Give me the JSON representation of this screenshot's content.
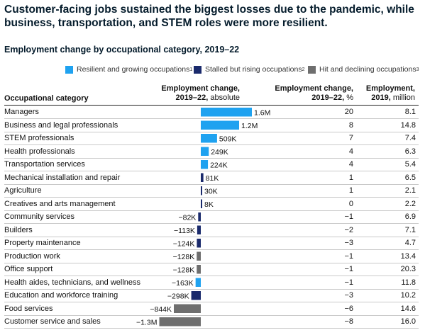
{
  "title": "Customer-facing jobs sustained the biggest losses due to the pandemic, while business, transportation, and STEM roles were more resilient.",
  "subtitle": "Employment change by occupational category, 2019–22",
  "legend": [
    {
      "label": "Resilient and growing occupations",
      "sup": "1",
      "color": "#1fa2f0"
    },
    {
      "label": "Stalled but rising occupations",
      "sup": "2",
      "color": "#1a2a6c"
    },
    {
      "label": "Hit and declining occupations",
      "sup": "3",
      "color": "#6e6e6e"
    }
  ],
  "headers": {
    "category": "Occupational category",
    "abs_line1": "Employment change,",
    "abs_line2_bold": "2019–22,",
    "abs_line2_rest": " absolute",
    "pct_line1": "Employment change,",
    "pct_line2_bold": "2019–22,",
    "pct_line2_rest": " %",
    "emp_line1": "Employment,",
    "emp_line2_bold": "2019,",
    "emp_line2_rest": " million"
  },
  "chart_data": {
    "type": "bar",
    "orientation": "horizontal",
    "title": "Employment change by occupational category, 2019–22",
    "categories": [
      "Managers",
      "Business and legal professionals",
      "STEM professionals",
      "Health professionals",
      "Transportation services",
      "Mechanical installation and repair",
      "Agriculture",
      "Creatives and arts management",
      "Community services",
      "Builders",
      "Property maintenance",
      "Production work",
      "Office support",
      "Health aides, technicians, and wellness",
      "Education and workforce training",
      "Food services",
      "Customer service and sales"
    ],
    "values": [
      1600000,
      1200000,
      509000,
      249000,
      224000,
      81000,
      30000,
      8000,
      -82000,
      -113000,
      -124000,
      -128000,
      -128000,
      -163000,
      -298000,
      -844000,
      -1300000
    ],
    "value_labels": [
      "1.6M",
      "1.2M",
      "509K",
      "249K",
      "224K",
      "81K",
      "30K",
      "8K",
      "−82K",
      "−113K",
      "−124K",
      "−128K",
      "−128K",
      "−163K",
      "−298K",
      "−844K",
      "−1.3M"
    ],
    "groups": [
      "resilient",
      "resilient",
      "resilient",
      "resilient",
      "resilient",
      "stalled",
      "stalled",
      "stalled",
      "stalled",
      "stalled",
      "stalled",
      "hit",
      "hit",
      "resilient",
      "stalled",
      "hit",
      "hit"
    ],
    "group_colors": {
      "resilient": "#1fa2f0",
      "stalled": "#1a2a6c",
      "hit": "#6e6e6e"
    },
    "pct_change": [
      "20",
      "8",
      "7",
      "4",
      "4",
      "1",
      "1",
      "0",
      "−1",
      "−2",
      "−3",
      "−1",
      "−1",
      "−1",
      "−3",
      "−6",
      "−8"
    ],
    "employment_2019_million": [
      "8.1",
      "14.8",
      "7.4",
      "6.3",
      "5.4",
      "6.5",
      "2.1",
      "2.2",
      "6.9",
      "7.1",
      "4.7",
      "13.4",
      "20.3",
      "11.8",
      "10.2",
      "14.6",
      "16.0"
    ]
  }
}
